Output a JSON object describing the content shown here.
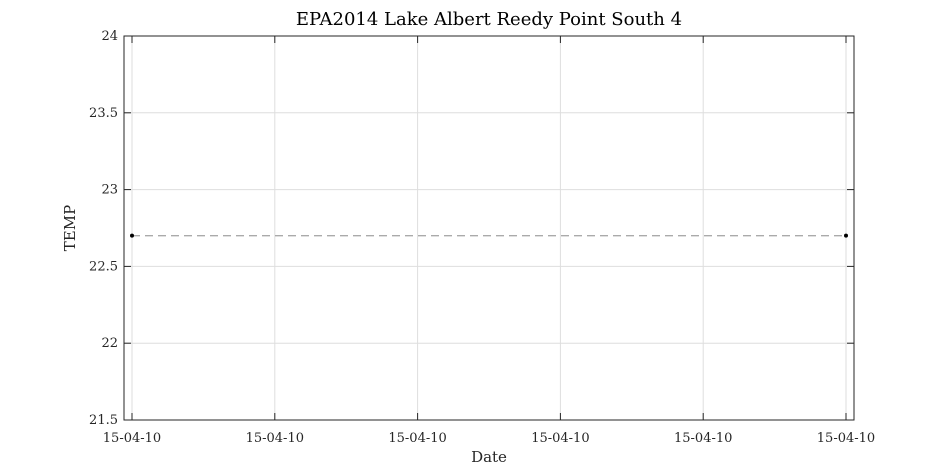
{
  "chart_data": {
    "type": "line",
    "title": "EPA2014 Lake Albert Reedy Point South 4",
    "xlabel": "Date",
    "ylabel": "TEMP",
    "ylim": [
      21.5,
      24
    ],
    "y_ticks": [
      "21.5",
      "22",
      "22.5",
      "23",
      "23.5",
      "24"
    ],
    "x_tick_labels": [
      "15-04-10",
      "15-04-10",
      "15-04-10",
      "15-04-10",
      "15-04-10",
      "15-04-10"
    ],
    "grid": true,
    "series": [
      {
        "x": [
          "15-04-10",
          "15-04-10"
        ],
        "values": [
          22.7,
          22.7
        ],
        "color": "#000000",
        "line_color": "#aaaaaa",
        "line_style": "dashed",
        "marker": "dot"
      }
    ]
  }
}
